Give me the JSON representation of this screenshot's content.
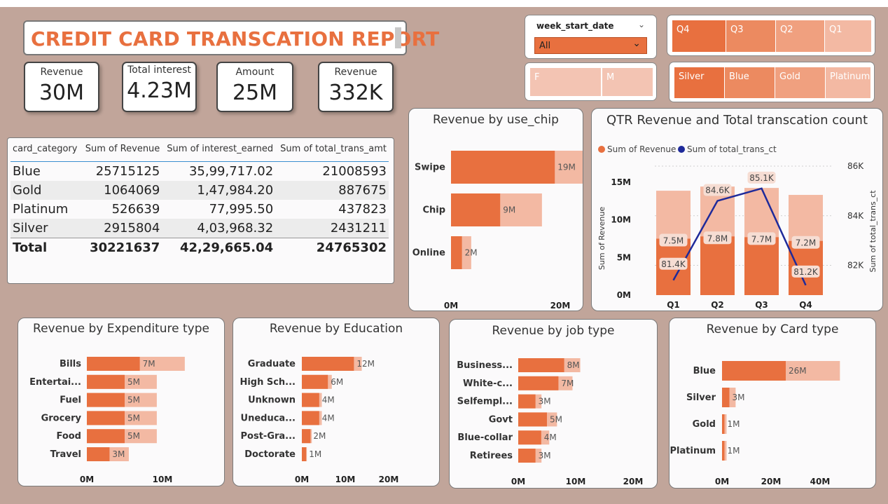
{
  "report_title": "CREDIT CARD TRANSCATION REPORT",
  "colors": {
    "accent": "#e8703f",
    "light": "#f3b9a3",
    "mid": "#ec8a60",
    "canvas": "#c1a59a",
    "line": "#1e2a9a"
  },
  "kpis": [
    {
      "label": "Revenue",
      "value": "30M"
    },
    {
      "label": "Total interest",
      "value": "4.23M"
    },
    {
      "label": "Amount",
      "value": "25M"
    },
    {
      "label": "Revenue",
      "value": "332K"
    }
  ],
  "slicers": {
    "week": {
      "label": "week_start_date",
      "selected": "All"
    },
    "quarters": [
      "Q4",
      "Q3",
      "Q2",
      "Q1"
    ],
    "gender": [
      "F",
      "M"
    ],
    "card_types": [
      "Silver",
      "Blue",
      "Gold",
      "Platinum"
    ]
  },
  "table": {
    "headers": [
      "card_category",
      "Sum of Revenue",
      "Sum of interest_earned",
      "Sum of total_trans_amt"
    ],
    "rows": [
      [
        "Blue",
        "25715125",
        "35,99,717.02",
        "21008593"
      ],
      [
        "Gold",
        "1064069",
        "1,47,984.20",
        "887675"
      ],
      [
        "Platinum",
        "526639",
        "77,995.50",
        "437823"
      ],
      [
        "Silver",
        "2915804",
        "4,03,968.32",
        "2431211"
      ]
    ],
    "total": [
      "Total",
      "30221637",
      "42,29,665.04",
      "24765302"
    ]
  },
  "chart_data": [
    {
      "id": "use_chip",
      "type": "bar",
      "title": "Revenue by use_chip",
      "categories": [
        "Swipe",
        "Chip",
        "Online"
      ],
      "values": [
        19,
        9,
        2
      ],
      "data_labels": [
        "19M",
        "9M",
        "2M"
      ],
      "xticks": [
        "0M",
        "20M",
        "40M"
      ],
      "xlim": [
        0,
        40
      ]
    },
    {
      "id": "quarter",
      "type": "bar",
      "title": "QTR Revenue and Total transcation count",
      "legend": [
        "Sum of Revenue",
        "Sum of total_trans_ct"
      ],
      "categories": [
        "Q1",
        "Q2",
        "Q3",
        "Q4"
      ],
      "series": [
        {
          "name": "Sum of Revenue",
          "values": [
            7.5,
            7.8,
            7.7,
            7.2
          ],
          "labels": [
            "7.5M",
            "7.8M",
            "7.7M",
            "7.2M"
          ]
        },
        {
          "name": "Sum of total_trans_ct",
          "values": [
            81.4,
            84.6,
            85.1,
            81.2
          ],
          "labels": [
            "81.4K",
            "84.6K",
            "85.1K",
            "81.2K"
          ]
        }
      ],
      "ylabel": "Sum of Revenue",
      "y2label": "Sum of total_trans_ct",
      "yticks": [
        "0M",
        "5M",
        "10M",
        "15M"
      ],
      "ylim": [
        0,
        15
      ],
      "y2ticks": [
        "82K",
        "84K",
        "86K"
      ],
      "y2lim": [
        80.8,
        86
      ]
    },
    {
      "id": "expenditure",
      "type": "bar",
      "title": "Revenue by Expenditure type",
      "categories": [
        "Bills",
        "Entertai...",
        "Fuel",
        "Grocery",
        "Food",
        "Travel"
      ],
      "values": [
        7,
        5,
        5,
        5,
        5,
        3
      ],
      "data_labels": [
        "7M",
        "5M",
        "5M",
        "5M",
        "5M",
        "3M"
      ],
      "xticks": [
        "0M",
        "10M"
      ],
      "xlim": [
        0,
        10
      ]
    },
    {
      "id": "education",
      "type": "bar",
      "title": "Revenue by Education",
      "categories": [
        "Graduate",
        "High Sch...",
        "Unknown",
        "Uneduca...",
        "Post-Gra...",
        "Doctorate"
      ],
      "values": [
        12,
        6,
        4,
        4,
        2,
        1
      ],
      "data_labels": [
        "12M",
        "6M",
        "4M",
        "4M",
        "2M",
        "1M"
      ],
      "xticks": [
        "0M",
        "10M",
        "20M"
      ],
      "xlim": [
        0,
        20
      ]
    },
    {
      "id": "job",
      "type": "bar",
      "title": "Revenue by job type",
      "categories": [
        "Business...",
        "White-c...",
        "Selfempl...",
        "Govt",
        "Blue-collar",
        "Retirees"
      ],
      "values": [
        8,
        7,
        3,
        5,
        4,
        3
      ],
      "data_labels": [
        "8M",
        "7M",
        "3M",
        "5M",
        "4M",
        "3M"
      ],
      "xticks": [
        "0M",
        "10M",
        "20M"
      ],
      "xlim": [
        0,
        20
      ]
    },
    {
      "id": "card",
      "type": "bar",
      "title": "Revenue by Card type",
      "categories": [
        "Blue",
        "Silver",
        "Gold",
        "Platinum"
      ],
      "values": [
        26,
        3,
        1,
        1
      ],
      "data_labels": [
        "26M",
        "3M",
        "1M",
        "1M"
      ],
      "xticks": [
        "0M",
        "20M",
        "40M"
      ],
      "xlim": [
        0,
        40
      ]
    }
  ]
}
